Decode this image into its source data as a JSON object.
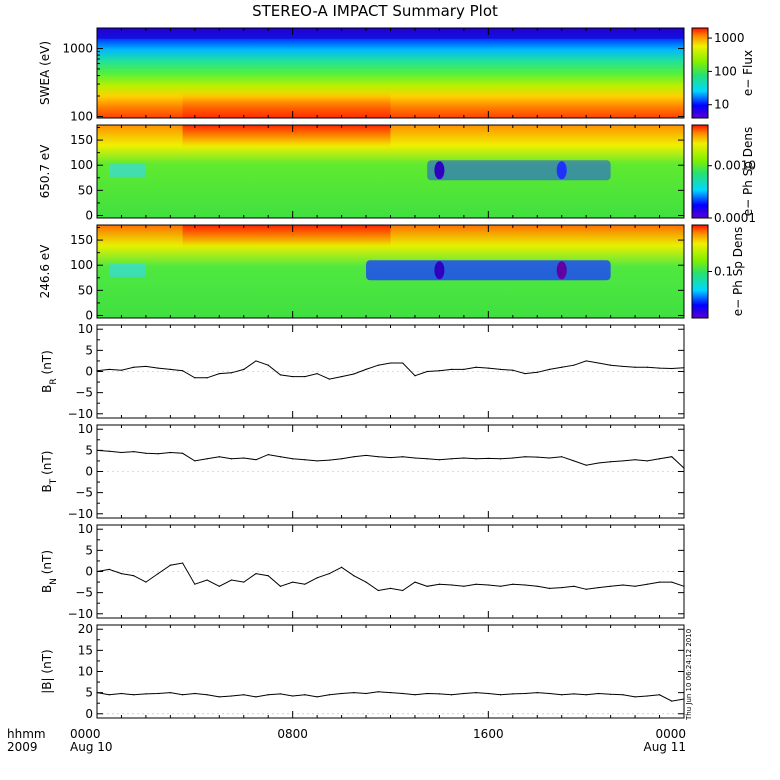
{
  "title": "STEREO-A IMPACT Summary Plot",
  "stamp": "Thu Jun 10 06:24:12 2010",
  "x_axis": {
    "row_label": "hhmm",
    "year": "2009",
    "ticks": [
      {
        "value": 0,
        "label": "0000",
        "sublabel": "Aug 10"
      },
      {
        "value": 8,
        "label": "0800",
        "sublabel": ""
      },
      {
        "value": 16,
        "label": "1600",
        "sublabel": ""
      },
      {
        "value": 24,
        "label": "0000",
        "sublabel": "Aug 11"
      }
    ],
    "xlim": [
      0,
      24
    ],
    "unit": "hours"
  },
  "chart_data": [
    {
      "type": "heatmap",
      "ylabel": "SWEA (eV)",
      "yscale": "log",
      "ylim": [
        95,
        2000
      ],
      "yticks": [
        {
          "value": 100,
          "label": "100"
        },
        {
          "value": 1000,
          "label": "1000"
        }
      ],
      "colorbar": {
        "label": "e− Flux",
        "scale": "log",
        "range": [
          4,
          2000
        ],
        "ticks": [
          {
            "value": 10,
            "label": "10"
          },
          {
            "value": 100,
            "label": "100"
          },
          {
            "value": 1000,
            "label": "1000"
          }
        ]
      }
    },
    {
      "type": "heatmap",
      "ylabel": "650.7 eV",
      "ylim": [
        -5,
        180
      ],
      "yticks": [
        {
          "value": 0,
          "label": "0"
        },
        {
          "value": 50,
          "label": "50"
        },
        {
          "value": 100,
          "label": "100"
        },
        {
          "value": 150,
          "label": "150"
        }
      ],
      "colorbar": {
        "label": "e− Ph Sp Dens",
        "scale": "log",
        "range": [
          0.0001,
          0.006
        ],
        "ticks": [
          {
            "value": 0.0001,
            "label": "0.0001"
          },
          {
            "value": 0.001,
            "label": "0.0010"
          }
        ]
      }
    },
    {
      "type": "heatmap",
      "ylabel": "246.6 eV",
      "ylim": [
        -5,
        180
      ],
      "yticks": [
        {
          "value": 0,
          "label": "0"
        },
        {
          "value": 50,
          "label": "50"
        },
        {
          "value": 100,
          "label": "100"
        },
        {
          "value": 150,
          "label": "150"
        }
      ],
      "colorbar": {
        "label": "e− Ph Sp Dens",
        "scale": "log",
        "range": [
          0.02,
          0.5
        ],
        "ticks": [
          {
            "value": 0.1,
            "label": "0.1"
          }
        ]
      }
    },
    {
      "type": "line",
      "ylabel": "B",
      "ylabel_sub": "R",
      "ylabel_unit": "(nT)",
      "ylim": [
        -11,
        11
      ],
      "yticks": [
        {
          "value": -10,
          "label": "−10"
        },
        {
          "value": -5,
          "label": "−5"
        },
        {
          "value": 0,
          "label": "0"
        },
        {
          "value": 5,
          "label": "5"
        },
        {
          "value": 10,
          "label": "10"
        }
      ],
      "x": [
        0,
        0.5,
        1,
        1.5,
        2,
        2.5,
        3,
        3.5,
        4,
        4.5,
        5,
        5.5,
        6,
        6.5,
        7,
        7.5,
        8,
        8.5,
        9,
        9.5,
        10,
        10.5,
        11,
        11.5,
        12,
        12.5,
        13,
        13.5,
        14,
        14.5,
        15,
        15.5,
        16,
        16.5,
        17,
        17.5,
        18,
        18.5,
        19,
        19.5,
        20,
        20.5,
        21,
        21.5,
        22,
        22.5,
        23,
        23.5,
        24
      ],
      "values": [
        0.2,
        0.5,
        0.3,
        1.0,
        1.2,
        0.8,
        0.5,
        0.2,
        -1.5,
        -1.5,
        -0.5,
        -0.3,
        0.5,
        2.5,
        1.5,
        -0.8,
        -1.2,
        -1.2,
        -0.5,
        -1.8,
        -1.2,
        -0.6,
        0.5,
        1.5,
        2.0,
        2.0,
        -1.0,
        0.0,
        0.2,
        0.5,
        0.5,
        1.0,
        0.8,
        0.5,
        0.3,
        -0.5,
        -0.2,
        0.5,
        1.0,
        1.5,
        2.5,
        2.0,
        1.5,
        1.2,
        1.0,
        1.0,
        0.8,
        0.7,
        0.9
      ]
    },
    {
      "type": "line",
      "ylabel": "B",
      "ylabel_sub": "T",
      "ylabel_unit": "(nT)",
      "ylim": [
        -11,
        11
      ],
      "yticks": [
        {
          "value": -10,
          "label": "−10"
        },
        {
          "value": -5,
          "label": "−5"
        },
        {
          "value": 0,
          "label": "0"
        },
        {
          "value": 5,
          "label": "5"
        },
        {
          "value": 10,
          "label": "10"
        }
      ],
      "x": [
        0,
        0.5,
        1,
        1.5,
        2,
        2.5,
        3,
        3.5,
        4,
        4.5,
        5,
        5.5,
        6,
        6.5,
        7,
        7.5,
        8,
        8.5,
        9,
        9.5,
        10,
        10.5,
        11,
        11.5,
        12,
        12.5,
        13,
        13.5,
        14,
        14.5,
        15,
        15.5,
        16,
        16.5,
        17,
        17.5,
        18,
        18.5,
        19,
        19.5,
        20,
        20.5,
        21,
        21.5,
        22,
        22.5,
        23,
        23.5,
        24
      ],
      "values": [
        5.0,
        4.8,
        4.5,
        4.7,
        4.3,
        4.2,
        4.5,
        4.3,
        2.5,
        3.0,
        3.5,
        3.0,
        3.2,
        2.8,
        4.0,
        3.5,
        3.0,
        2.8,
        2.5,
        2.7,
        3.0,
        3.5,
        3.8,
        3.5,
        3.3,
        3.5,
        3.2,
        3.0,
        2.8,
        3.0,
        3.2,
        3.0,
        3.1,
        3.0,
        3.2,
        3.5,
        3.4,
        3.2,
        3.5,
        2.5,
        1.5,
        2.0,
        2.3,
        2.5,
        2.8,
        2.5,
        3.0,
        3.5,
        0.8
      ]
    },
    {
      "type": "line",
      "ylabel": "B",
      "ylabel_sub": "N",
      "ylabel_unit": "(nT)",
      "ylim": [
        -11,
        11
      ],
      "yticks": [
        {
          "value": -10,
          "label": "−10"
        },
        {
          "value": -5,
          "label": "−5"
        },
        {
          "value": 0,
          "label": "0"
        },
        {
          "value": 5,
          "label": "5"
        },
        {
          "value": 10,
          "label": "10"
        }
      ],
      "x": [
        0,
        0.5,
        1,
        1.5,
        2,
        2.5,
        3,
        3.5,
        4,
        4.5,
        5,
        5.5,
        6,
        6.5,
        7,
        7.5,
        8,
        8.5,
        9,
        9.5,
        10,
        10.5,
        11,
        11.5,
        12,
        12.5,
        13,
        13.5,
        14,
        14.5,
        15,
        15.5,
        16,
        16.5,
        17,
        17.5,
        18,
        18.5,
        19,
        19.5,
        20,
        20.5,
        21,
        21.5,
        22,
        22.5,
        23,
        23.5,
        24
      ],
      "values": [
        0.0,
        0.5,
        -0.5,
        -1.0,
        -2.5,
        -0.5,
        1.5,
        2.0,
        -3.0,
        -2.0,
        -3.5,
        -2.0,
        -2.5,
        -0.5,
        -1.0,
        -3.5,
        -2.5,
        -3.0,
        -1.5,
        -0.5,
        1.0,
        -1.0,
        -2.5,
        -4.5,
        -4.0,
        -4.5,
        -2.5,
        -3.5,
        -3.0,
        -3.2,
        -3.5,
        -3.0,
        -3.2,
        -3.5,
        -3.0,
        -3.2,
        -3.5,
        -4.0,
        -3.8,
        -3.5,
        -4.2,
        -3.8,
        -3.5,
        -3.2,
        -3.5,
        -3.0,
        -2.5,
        -2.5,
        -3.5
      ]
    },
    {
      "type": "line",
      "ylabel": "|B|",
      "ylabel_sub": "",
      "ylabel_unit": "(nT)",
      "ylim": [
        -1,
        21
      ],
      "yticks": [
        {
          "value": 0,
          "label": "0"
        },
        {
          "value": 5,
          "label": "5"
        },
        {
          "value": 10,
          "label": "10"
        },
        {
          "value": 15,
          "label": "15"
        },
        {
          "value": 20,
          "label": "20"
        }
      ],
      "x": [
        0,
        0.5,
        1,
        1.5,
        2,
        2.5,
        3,
        3.5,
        4,
        4.5,
        5,
        5.5,
        6,
        6.5,
        7,
        7.5,
        8,
        8.5,
        9,
        9.5,
        10,
        10.5,
        11,
        11.5,
        12,
        12.5,
        13,
        13.5,
        14,
        14.5,
        15,
        15.5,
        16,
        16.5,
        17,
        17.5,
        18,
        18.5,
        19,
        19.5,
        20,
        20.5,
        21,
        21.5,
        22,
        22.5,
        23,
        23.5,
        24
      ],
      "values": [
        5.0,
        4.5,
        4.8,
        4.5,
        4.7,
        4.8,
        5.0,
        4.5,
        4.8,
        4.5,
        4.0,
        4.2,
        4.5,
        4.0,
        4.5,
        4.7,
        4.2,
        4.5,
        4.0,
        4.5,
        4.8,
        5.0,
        4.8,
        5.2,
        5.0,
        4.8,
        4.5,
        4.8,
        4.7,
        4.5,
        4.8,
        5.0,
        4.8,
        4.5,
        4.7,
        4.8,
        5.0,
        4.8,
        4.5,
        4.7,
        4.5,
        4.8,
        4.6,
        4.5,
        4.0,
        4.2,
        4.5,
        3.0,
        3.5
      ]
    }
  ]
}
